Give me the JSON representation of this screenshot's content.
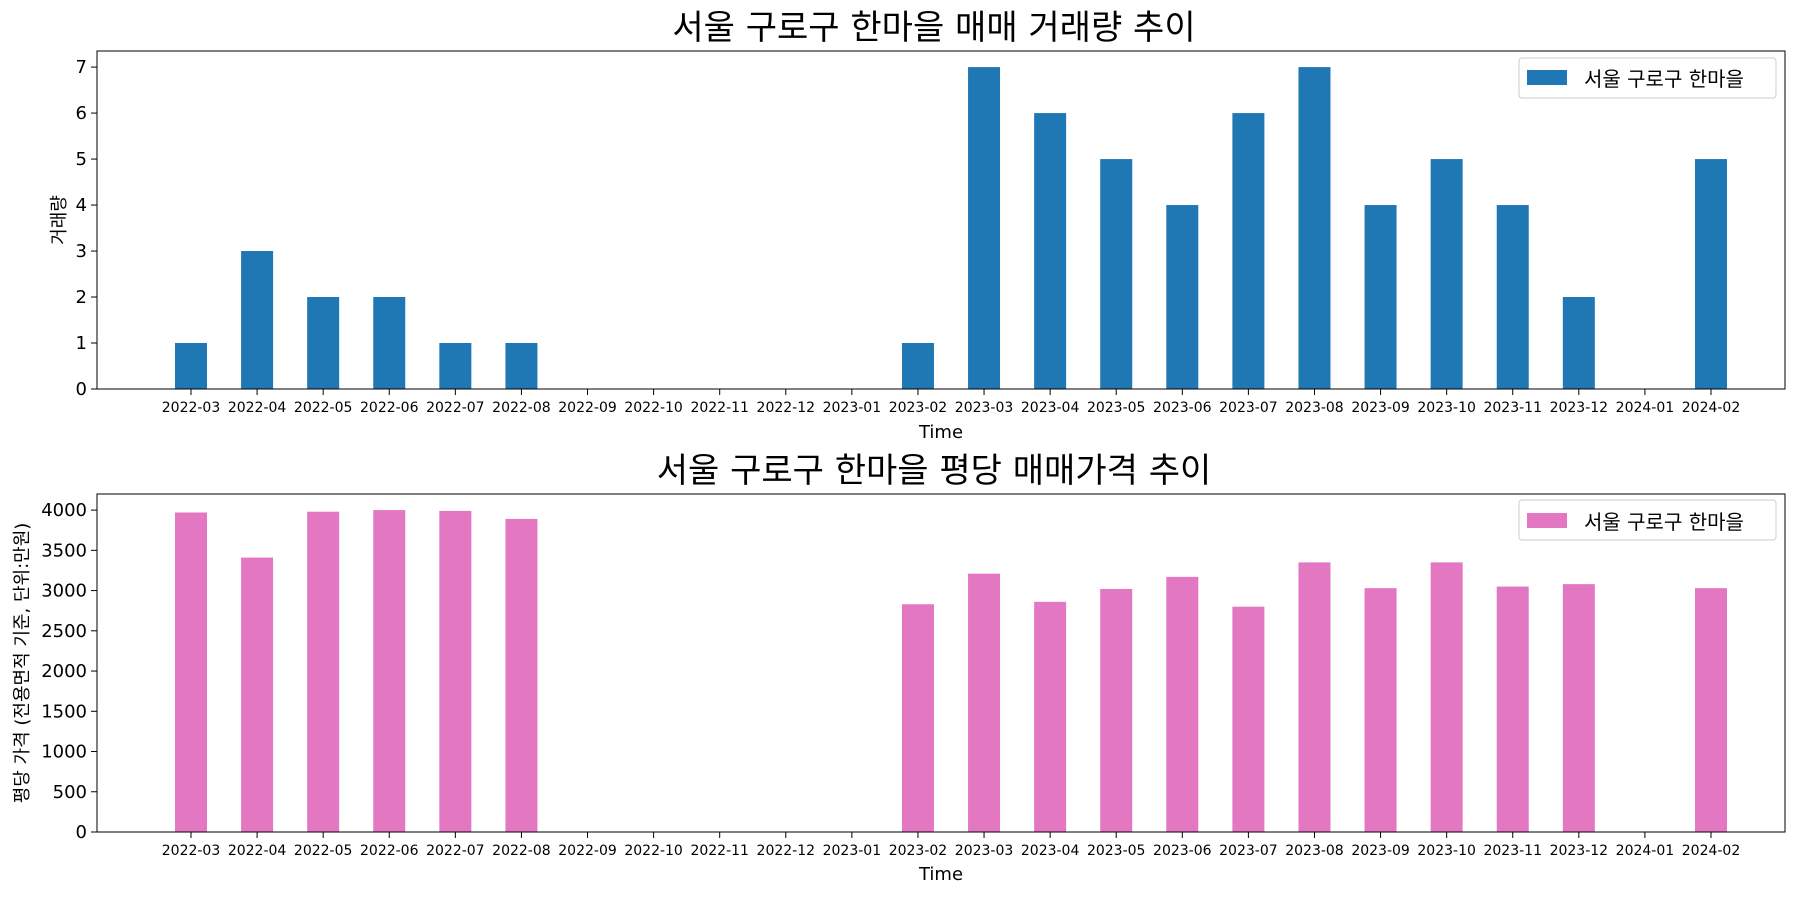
{
  "chart_data": [
    {
      "type": "bar",
      "title": "서울 구로구 한마을 매매 거래량 추이",
      "xlabel": "Time",
      "ylabel": "거래량",
      "categories": [
        "2022-03",
        "2022-04",
        "2022-05",
        "2022-06",
        "2022-07",
        "2022-08",
        "2022-09",
        "2022-10",
        "2022-11",
        "2022-12",
        "2023-01",
        "2023-02",
        "2023-03",
        "2023-04",
        "2023-05",
        "2023-06",
        "2023-07",
        "2023-08",
        "2023-09",
        "2023-10",
        "2023-11",
        "2023-12",
        "2024-01",
        "2024-02"
      ],
      "series": [
        {
          "name": "서울 구로구 한마을",
          "color": "#1f77b4",
          "values": [
            1,
            3,
            2,
            2,
            1,
            1,
            null,
            null,
            null,
            null,
            null,
            1,
            7,
            6,
            5,
            4,
            6,
            7,
            4,
            5,
            4,
            2,
            null,
            5
          ]
        }
      ],
      "ylim": [
        0,
        7.35
      ],
      "yticks": [
        0,
        1,
        2,
        3,
        4,
        5,
        6,
        7
      ],
      "legend": "top-right",
      "grid": false
    },
    {
      "type": "bar",
      "title": "서울 구로구 한마을 평당 매매가격 추이",
      "xlabel": "Time",
      "ylabel": "평당 가격 (전용면적 기준, 단위:만원)",
      "categories": [
        "2022-03",
        "2022-04",
        "2022-05",
        "2022-06",
        "2022-07",
        "2022-08",
        "2022-09",
        "2022-10",
        "2022-11",
        "2022-12",
        "2023-01",
        "2023-02",
        "2023-03",
        "2023-04",
        "2023-05",
        "2023-06",
        "2023-07",
        "2023-08",
        "2023-09",
        "2023-10",
        "2023-11",
        "2023-12",
        "2024-01",
        "2024-02"
      ],
      "series": [
        {
          "name": "서울 구로구 한마을",
          "color": "#e377c2",
          "values": [
            3970,
            3410,
            3980,
            4000,
            3990,
            3890,
            null,
            null,
            null,
            null,
            null,
            2830,
            3210,
            2860,
            3020,
            3170,
            2800,
            3350,
            3030,
            3350,
            3050,
            3080,
            null,
            3030
          ]
        }
      ],
      "ylim": [
        0,
        4200
      ],
      "yticks": [
        0,
        500,
        1000,
        1500,
        2000,
        2500,
        3000,
        3500,
        4000
      ],
      "legend": "top-right",
      "grid": false
    }
  ]
}
